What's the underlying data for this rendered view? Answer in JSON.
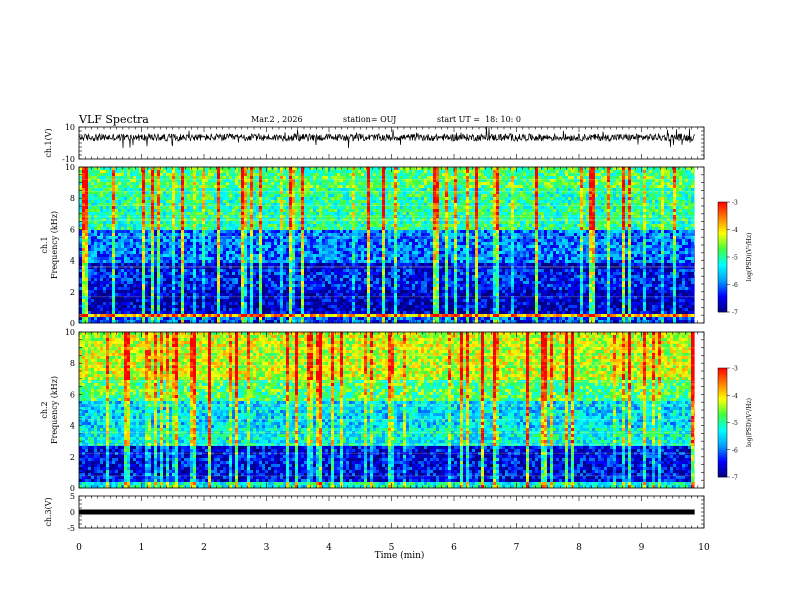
{
  "header": {
    "title": "VLF Spectra",
    "date": "Mar.2 , 2026",
    "station": "station= OUJ",
    "start": "start UT =  18: 10: 0"
  },
  "chart_data": [
    {
      "type": "line",
      "panel": "ch1-waveform",
      "ylabel": "ch.1(V)",
      "ylim": [
        -10,
        10
      ],
      "yticks": [
        "10",
        "-10"
      ],
      "xlim": [
        0,
        10
      ],
      "baseline": 3.5,
      "color": "#000000"
    },
    {
      "type": "heatmap",
      "panel": "ch1-spectrogram",
      "ylabel": [
        "ch.1",
        "Frequency (kHz)"
      ],
      "ylim": [
        0,
        10
      ],
      "yticks": [
        "0",
        "2",
        "4",
        "6",
        "8",
        "10"
      ],
      "xlim": [
        0,
        10
      ],
      "data_end_min": 9.85,
      "colorbar": {
        "label": "log(PSD)(V²/Hz)",
        "ticks": [
          "-3",
          "-4",
          "-5",
          "-6",
          "-7"
        ],
        "range": [
          -7,
          -3
        ]
      },
      "band_levels": [
        [
          0,
          0.3,
          -6.2
        ],
        [
          0.3,
          0.5,
          -3.8
        ],
        [
          0.5,
          2.2,
          -6.7
        ],
        [
          2.2,
          3.4,
          -6.4
        ],
        [
          3.4,
          3.9,
          -6.7
        ],
        [
          3.9,
          6.0,
          -6.0
        ],
        [
          6.0,
          8.6,
          -5.0
        ],
        [
          8.6,
          10,
          -4.8
        ]
      ]
    },
    {
      "type": "heatmap",
      "panel": "ch2-spectrogram",
      "ylabel": [
        "ch.2",
        "Frequency (kHz)"
      ],
      "ylim": [
        0,
        10
      ],
      "yticks": [
        "0",
        "2",
        "4",
        "6",
        "8",
        "10"
      ],
      "xlim": [
        0,
        10
      ],
      "data_end_min": 9.85,
      "colorbar": {
        "label": "log(PSD)(V²/Hz)",
        "ticks": [
          "-3",
          "-4",
          "-5",
          "-6",
          "-7"
        ],
        "range": [
          -7,
          -3
        ]
      },
      "band_levels": [
        [
          0,
          0.4,
          -5.2
        ],
        [
          0.4,
          2.6,
          -6.5
        ],
        [
          2.6,
          3.8,
          -5.3
        ],
        [
          3.8,
          5.5,
          -5.5
        ],
        [
          5.5,
          7.0,
          -4.8
        ],
        [
          7.0,
          10,
          -4.3
        ]
      ]
    },
    {
      "type": "line",
      "panel": "ch3-waveform",
      "ylabel": "ch.3(V)",
      "ylim": [
        -5,
        5
      ],
      "yticks": [
        "5",
        "0",
        "-5"
      ],
      "xlim": [
        0,
        10
      ],
      "baseline": 0,
      "color": "#000000"
    }
  ],
  "xaxis": {
    "label": "Time (min)",
    "ticks": [
      "0",
      "1",
      "2",
      "3",
      "4",
      "5",
      "6",
      "7",
      "8",
      "9",
      "10"
    ]
  },
  "colors": {
    "colormap": [
      "#000080",
      "#0000ff",
      "#00a0ff",
      "#00ffff",
      "#40ff40",
      "#ffff00",
      "#ff8000",
      "#ff0000",
      "#ffffff"
    ]
  }
}
